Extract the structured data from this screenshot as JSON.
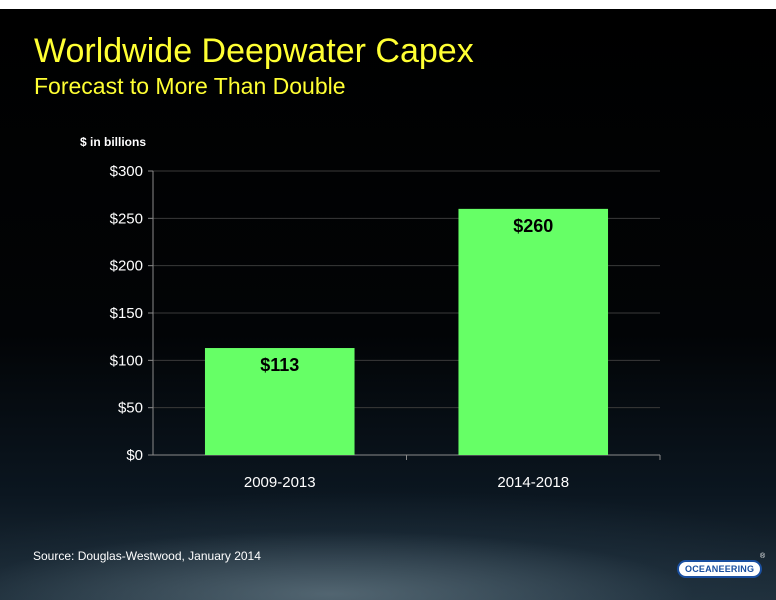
{
  "slide": {
    "title": "Worldwide Deepwater Capex",
    "subtitle": "Forecast to More Than Double",
    "source": "Source:  Douglas-Westwood, January 2014",
    "logo_text": "OCEANEERING",
    "logo_mark": "®"
  },
  "chart_data": {
    "type": "bar",
    "ylabel": "$ in billions",
    "categories": [
      "2009-2013",
      "2014-2018"
    ],
    "values": [
      113,
      260
    ],
    "value_labels": [
      "$113",
      "$260"
    ],
    "ylim": [
      0,
      300
    ],
    "yticks": [
      0,
      50,
      100,
      150,
      200,
      250,
      300
    ],
    "ytick_labels": [
      "$0",
      "$50",
      "$100",
      "$150",
      "$200",
      "$250",
      "$300"
    ],
    "grid": true,
    "colors": {
      "bar": "#66ff66",
      "grid": "#3a3a3a",
      "axis": "#8a8a8a",
      "text": "#ffffff",
      "value_label": "#000000"
    }
  }
}
